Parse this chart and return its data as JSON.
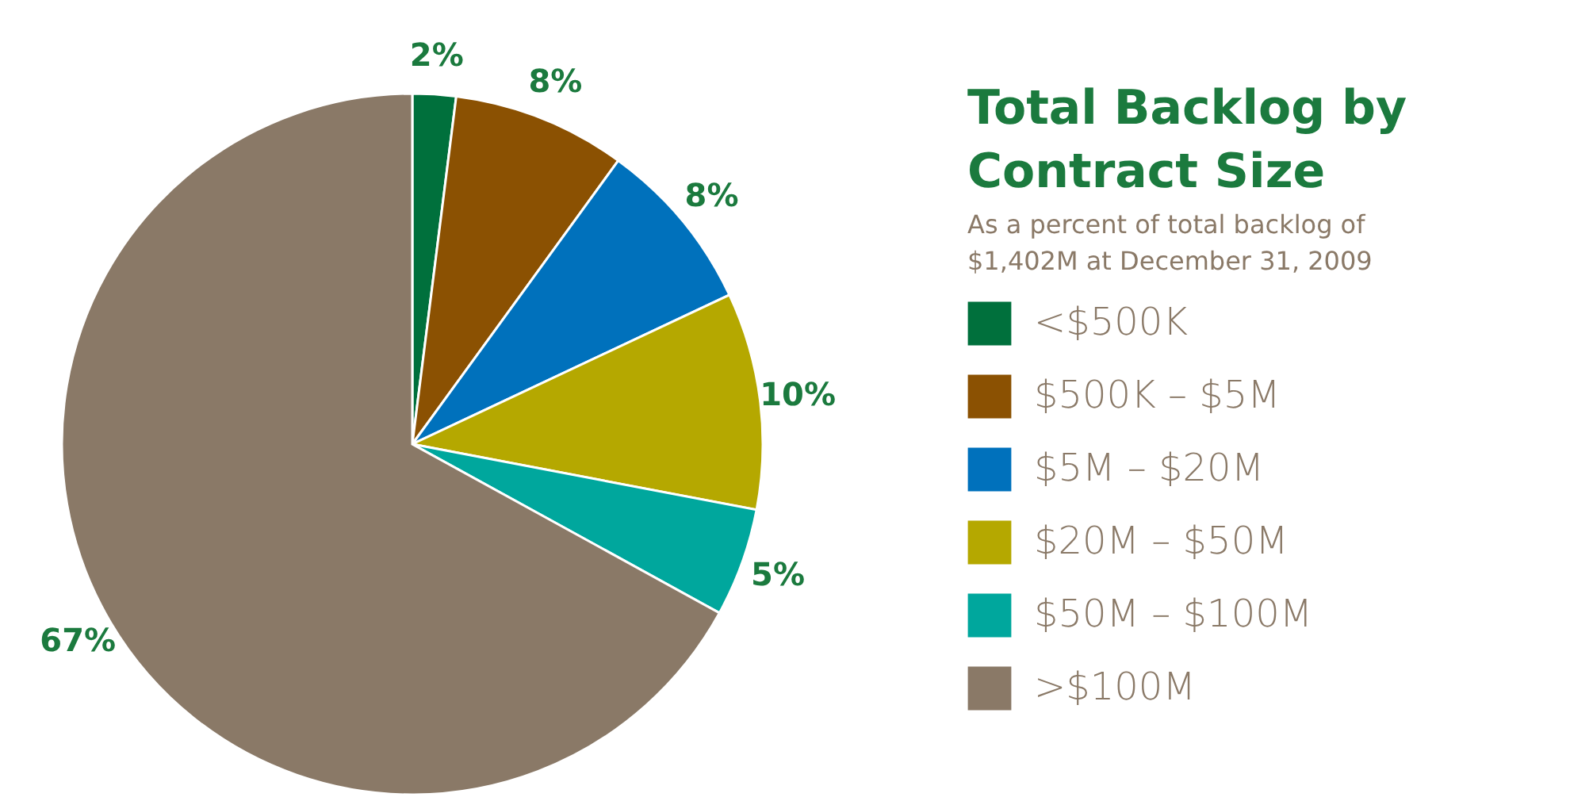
{
  "chart_data": {
    "type": "pie",
    "title": "Total Backlog by Contract Size",
    "subtitle": "As a percent of total backlog of $1,402M at December 31, 2009",
    "categories": [
      "<$500K",
      "$500K – $5M",
      "$5M – $20M",
      "$20M – $50M",
      "$50M – $100M",
      ">$100M"
    ],
    "values": [
      2,
      8,
      8,
      10,
      5,
      67
    ],
    "colors": [
      "#00703c",
      "#8b5102",
      "#0071bc",
      "#b5a800",
      "#00a79d",
      "#8a7967"
    ],
    "value_labels": [
      "2%",
      "8%",
      "8%",
      "10%",
      "5%",
      "67%"
    ],
    "legend": "right"
  }
}
